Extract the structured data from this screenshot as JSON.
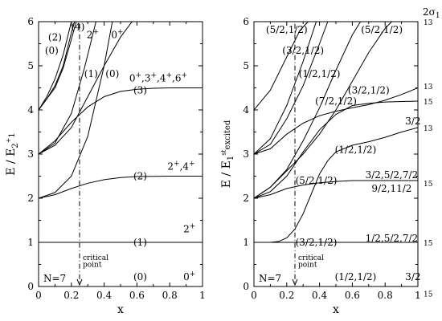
{
  "chart_data": [
    {
      "type": "line",
      "panel": "left",
      "xlim": [
        0,
        1
      ],
      "ylim": [
        0,
        6
      ],
      "xticks": [
        "0",
        "0.2",
        "0.4",
        "0.6",
        "0.8",
        "1"
      ],
      "yticks": [
        "0",
        "1",
        "2",
        "3",
        "4",
        "5",
        "6"
      ],
      "xlabel": "x",
      "ylabel": "E / E2+1",
      "ylabel_parts": [
        "E / E",
        "2",
        "+",
        "1"
      ],
      "system_label": "N=7",
      "critical_point": {
        "x": 0.25,
        "label_lines": [
          "critical",
          "point"
        ]
      },
      "series": [
        {
          "x": [
            0,
            0.25,
            0.5,
            0.75,
            1
          ],
          "y": [
            1,
            1,
            1,
            1,
            1
          ]
        },
        {
          "x": [
            0,
            0.1,
            0.2,
            0.3,
            0.4,
            0.5,
            0.6,
            0.8,
            1
          ],
          "y": [
            2,
            2.08,
            2.22,
            2.34,
            2.42,
            2.47,
            2.49,
            2.5,
            2.5
          ]
        },
        {
          "x": [
            0,
            0.1,
            0.2,
            0.3,
            0.4,
            0.5,
            0.6,
            0.7,
            0.8,
            1
          ],
          "y": [
            3,
            3.3,
            3.72,
            4.07,
            4.3,
            4.42,
            4.47,
            4.49,
            4.5,
            4.5
          ]
        },
        {
          "x": [
            0,
            0.1,
            0.2,
            0.3,
            0.4,
            0.45
          ],
          "y": [
            2,
            2.13,
            2.5,
            3.4,
            5.0,
            6.0
          ]
        },
        {
          "x": [
            0,
            0.1,
            0.2,
            0.3,
            0.4,
            0.5,
            0.57
          ],
          "y": [
            3,
            3.2,
            3.6,
            4.3,
            5.0,
            5.65,
            6.0
          ]
        },
        {
          "x": [
            0,
            0.1,
            0.2,
            0.28,
            0.35
          ],
          "y": [
            3,
            3.25,
            3.92,
            4.95,
            6.0
          ]
        },
        {
          "x": [
            0,
            0.05,
            0.1,
            0.15,
            0.2,
            0.23
          ],
          "y": [
            4,
            4.25,
            4.5,
            4.95,
            5.6,
            6.0
          ]
        },
        {
          "x": [
            0,
            0.05,
            0.1,
            0.15,
            0.2,
            0.22
          ],
          "y": [
            4,
            4.25,
            4.55,
            5.0,
            5.75,
            6.0
          ]
        },
        {
          "x": [
            0,
            0.05,
            0.1,
            0.15,
            0.2
          ],
          "y": [
            4,
            4.3,
            4.7,
            5.25,
            6.0
          ]
        }
      ],
      "labels": [
        {
          "text": "(1)",
          "x": 0.62,
          "y": 1.0
        },
        {
          "text": "(2)",
          "x": 0.62,
          "y": 2.5
        },
        {
          "text": "(3)",
          "x": 0.62,
          "y": 4.45
        },
        {
          "text": "(0)",
          "x": 0.62,
          "y": 0.22
        },
        {
          "text": "(1)",
          "x": 0.32,
          "y": 4.82
        },
        {
          "text": "(0)",
          "x": 0.45,
          "y": 4.82
        },
        {
          "text": "(2)",
          "x": 0.1,
          "y": 5.65
        },
        {
          "text": "(0)",
          "x": 0.08,
          "y": 5.35
        },
        {
          "text": "(4)",
          "x": 0.24,
          "y": 5.88
        },
        {
          "text": "2+",
          "x": 0.33,
          "y": 5.7
        },
        {
          "text": "0+",
          "x": 0.48,
          "y": 5.7
        },
        {
          "text": "0+,3+,4+,6+",
          "x": 0.73,
          "y": 4.72
        },
        {
          "text": "2+,4+",
          "x": 0.87,
          "y": 2.72
        },
        {
          "text": "2+",
          "x": 0.92,
          "y": 1.3
        },
        {
          "text": "0+",
          "x": 0.92,
          "y": 0.22
        }
      ]
    },
    {
      "type": "line",
      "panel": "right",
      "xlim": [
        0,
        1
      ],
      "ylim": [
        0,
        6
      ],
      "xticks": [
        "0",
        "0.2",
        "0.4",
        "0.6",
        "0.8",
        "1"
      ],
      "yticks": [
        "0",
        "1",
        "2",
        "3",
        "4",
        "5",
        "6"
      ],
      "xlabel": "x",
      "ylabel": "E / E1st excited",
      "ylabel_parts": [
        "E / E",
        "1",
        "st",
        "excited"
      ],
      "system_label": "N=7",
      "critical_point": {
        "x": 0.25,
        "label_lines": [
          "critical",
          "point"
        ]
      },
      "series": [
        {
          "x": [
            0,
            0.1,
            0.15,
            0.2,
            0.25,
            0.3,
            0.35,
            0.4,
            0.45,
            0.5,
            0.6,
            0.7,
            0.8,
            0.9,
            1
          ],
          "y": [
            1,
            1,
            1.02,
            1.1,
            1.3,
            1.65,
            2.1,
            2.55,
            2.85,
            3.05,
            3.2,
            3.28,
            3.38,
            3.5,
            3.6
          ]
        },
        {
          "x": [
            0,
            0.1,
            0.2,
            0.3,
            0.4,
            0.5,
            0.6,
            0.8,
            1
          ],
          "y": [
            1,
            1,
            1,
            1,
            1,
            1,
            1,
            1,
            1
          ]
        },
        {
          "x": [
            0,
            0.1,
            0.2,
            0.3,
            0.4,
            0.5,
            0.6,
            0.8,
            1
          ],
          "y": [
            2,
            2.08,
            2.22,
            2.3,
            2.35,
            2.38,
            2.4,
            2.4,
            2.4
          ]
        },
        {
          "x": [
            0,
            0.1,
            0.2,
            0.3,
            0.4,
            0.5,
            0.6,
            0.7,
            0.8,
            1
          ],
          "y": [
            2,
            2.15,
            2.5,
            3.05,
            3.55,
            3.9,
            4.1,
            4.15,
            4.18,
            4.2
          ]
        },
        {
          "x": [
            0,
            0.1,
            0.2,
            0.3,
            0.4,
            0.5,
            0.6,
            0.7,
            0.8,
            0.9,
            1
          ],
          "y": [
            3,
            3.12,
            3.45,
            3.7,
            3.87,
            3.97,
            4.05,
            4.12,
            4.22,
            4.35,
            4.5
          ]
        },
        {
          "x": [
            0,
            0.1,
            0.2,
            0.3,
            0.4,
            0.5,
            0.6,
            0.65
          ],
          "y": [
            2,
            2.25,
            2.65,
            3.3,
            4.05,
            4.9,
            5.7,
            6.0
          ]
        },
        {
          "x": [
            0,
            0.1,
            0.2,
            0.3,
            0.4,
            0.5,
            0.6,
            0.7,
            0.8,
            0.84
          ],
          "y": [
            2,
            2.25,
            2.62,
            3.0,
            3.45,
            4.0,
            4.65,
            5.3,
            5.85,
            6.0
          ]
        },
        {
          "x": [
            0,
            0.1,
            0.2,
            0.3,
            0.4,
            0.45
          ],
          "y": [
            3,
            3.22,
            3.8,
            4.55,
            5.5,
            6.0
          ]
        },
        {
          "x": [
            0,
            0.1,
            0.2,
            0.3,
            0.38
          ],
          "y": [
            3,
            3.35,
            4.1,
            5.1,
            6.0
          ]
        },
        {
          "x": [
            0,
            0.1,
            0.2,
            0.28,
            0.33
          ],
          "y": [
            4,
            4.45,
            5.2,
            5.8,
            6.0
          ]
        }
      ],
      "labels": [
        {
          "text": "(3/2,1/2)",
          "x": 0.38,
          "y": 1.0
        },
        {
          "text": "(5/2,1/2)",
          "x": 0.38,
          "y": 2.4
        },
        {
          "text": "(1/2,1/2)",
          "x": 0.62,
          "y": 0.22
        },
        {
          "text": "(1/2,1/2)",
          "x": 0.62,
          "y": 3.1
        },
        {
          "text": "(7/2,1/2)",
          "x": 0.5,
          "y": 4.2
        },
        {
          "text": "(3/2,1/2)",
          "x": 0.7,
          "y": 4.45
        },
        {
          "text": "(1/2,1/2)",
          "x": 0.4,
          "y": 4.82
        },
        {
          "text": "(3/2,1/2)",
          "x": 0.3,
          "y": 5.35
        },
        {
          "text": "(5/2,1/2)",
          "x": 0.2,
          "y": 5.82
        },
        {
          "text": "(5/2,1/2)",
          "x": 0.78,
          "y": 5.82
        },
        {
          "text": "1/2,5/2,7/2",
          "x": 0.84,
          "y": 1.09
        },
        {
          "text": "3/2,5/2,7/2",
          "x": 0.84,
          "y": 2.53
        },
        {
          "text": "9/2,11/2",
          "x": 0.84,
          "y": 2.22
        },
        {
          "text": "3/2",
          "x": 0.97,
          "y": 3.75
        },
        {
          "text": "3/2",
          "x": 0.97,
          "y": 0.22
        }
      ],
      "right_margin_labels": [
        {
          "text": "13",
          "y": 6.0
        },
        {
          "text": "13",
          "y": 4.55
        },
        {
          "text": "15",
          "y": 4.2
        },
        {
          "text": "13",
          "y": 3.6
        },
        {
          "text": "15",
          "y": 2.35
        },
        {
          "text": "15",
          "y": 1.0
        },
        {
          "text": "15",
          "y": -0.15
        }
      ],
      "corner_label_parts": [
        "2σ",
        "1"
      ]
    }
  ]
}
